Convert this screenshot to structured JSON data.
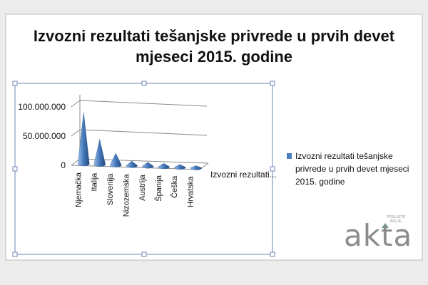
{
  "chart_data": {
    "type": "bar",
    "shape": "3d-cone",
    "title": "Izvozni rezultati tešanjske privrede u prvih devet mjeseci 2015. godine",
    "categories": [
      "Njemačka",
      "Italija",
      "Slovenija",
      "Nizozemska",
      "Austrija",
      "Španija",
      "Češka",
      "Hrvatska"
    ],
    "series": [
      {
        "name": "Izvozni rezultati tešanjske privrede u prvih devet mjeseci 2015. godine",
        "values": [
          92000000,
          45000000,
          21000000,
          8000000,
          7000000,
          6000000,
          5000000,
          4000000
        ],
        "color": "#4a7ec0"
      }
    ],
    "depth_axis_label": "Izvozni rezultati...",
    "ylim": [
      0,
      100000000
    ],
    "yticks": [
      "0",
      "50.000.000",
      "100.000.000"
    ],
    "grid": true,
    "legend": "right"
  },
  "branding": {
    "logo_word": "akta",
    "logo_sub_1": "POSLUJTE",
    "logo_sub_2": "BOLJE",
    "logo_color": "#8c8c8c",
    "logo_accent": "#5aa078"
  }
}
